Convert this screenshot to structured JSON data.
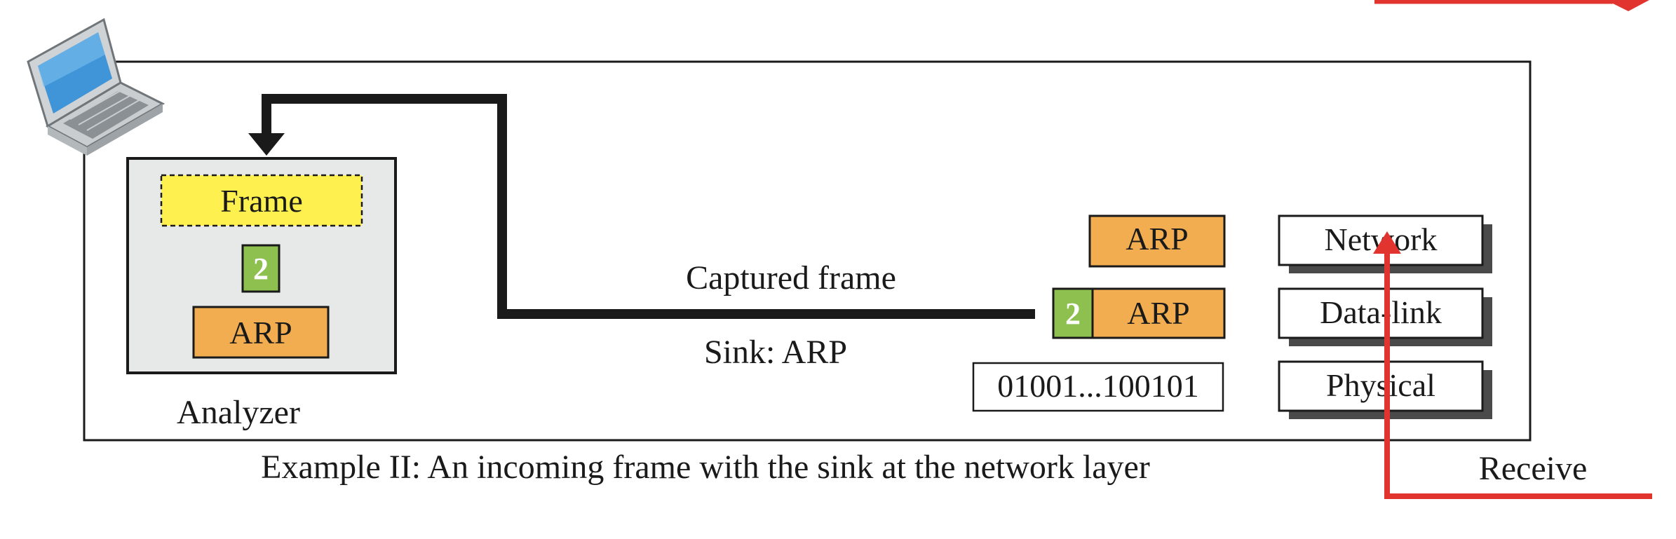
{
  "diagram": {
    "caption": "Example II: An incoming frame with the sink at the network layer",
    "analyzer": {
      "label": "Analyzer",
      "frame_label": "Frame",
      "header_number": "2",
      "payload_label": "ARP"
    },
    "captured_frame_label": "Captured frame",
    "sink_label": "Sink: ARP",
    "packets": {
      "network_packet": "ARP",
      "datalink_header": "2",
      "datalink_payload": "ARP",
      "bits": "01001...100101"
    },
    "layers": [
      "Network",
      "Data-link",
      "Physical"
    ],
    "receive_label": "Receive",
    "icons": [
      "laptop-icon"
    ],
    "colors": {
      "frame_fill": "#fef14f",
      "arp_fill": "#f1ad4f",
      "header_fill": "#8ec050",
      "analyzer_fill": "#e7e8e8",
      "receive_arrow": "#e2342f",
      "capture_path": "#1a1a1a"
    }
  }
}
